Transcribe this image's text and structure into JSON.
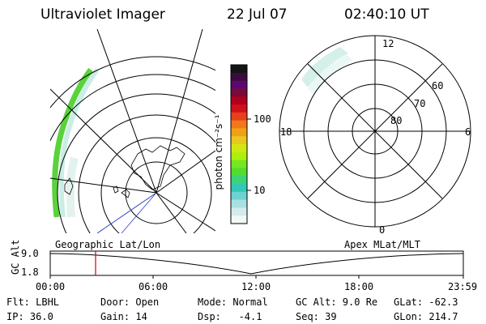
{
  "header": {
    "instrument": "Ultraviolet Imager",
    "date": "22 Jul 07",
    "time": "02:40:10 UT"
  },
  "geo_panel": {
    "label": "Geographic Lat/Lon"
  },
  "colorbar": {
    "unit_label": "photon cm⁻²s⁻¹",
    "ticks": [
      "100",
      "10"
    ],
    "colors_top_to_bottom": [
      "#141414",
      "#3c0a3c",
      "#5a0a6e",
      "#7a0a3a",
      "#b0001e",
      "#d0101a",
      "#e8401a",
      "#f0781a",
      "#f0a014",
      "#e6c81e",
      "#d2e614",
      "#aaf00a",
      "#78e61e",
      "#50dc32",
      "#3cd278",
      "#32c8b4",
      "#6ed2d2",
      "#aae0e0",
      "#d2ecec",
      "#f0f8f8"
    ]
  },
  "polar_panel": {
    "label": "Apex MLat/MLT",
    "mlt_labels": {
      "top": "12",
      "right": "6",
      "bottom": "0",
      "left": "18"
    },
    "lat_labels": [
      "60",
      "70",
      "80"
    ]
  },
  "timeline": {
    "ylabel": "GC Alt",
    "y_ticks": [
      "9.0",
      "1.8"
    ],
    "x_ticks": [
      "00:00",
      "06:00",
      "12:00",
      "18:00",
      "23:59"
    ],
    "current_time_marker": "02:40:10",
    "marker_color": "#cc0000"
  },
  "info": {
    "row1": {
      "flt": "Flt: LBHL",
      "door": "Door: Open",
      "mode": "Mode: Normal",
      "gcalt": "GC Alt: 9.0 Re",
      "glat": "GLat: -62.3"
    },
    "row2": {
      "ip": "IP: 36.0",
      "gain": "Gain: 14",
      "dsp": "Dsp:   -4.1",
      "seq": "Seq: 39",
      "glon": "GLon: 214.7"
    }
  }
}
